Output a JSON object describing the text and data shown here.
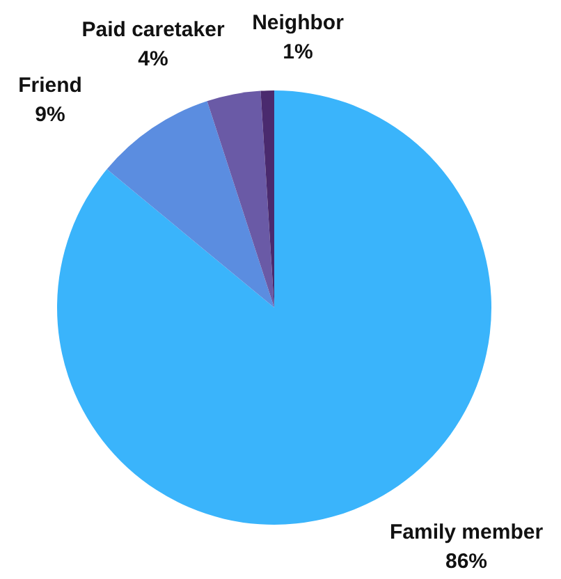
{
  "chart_data": {
    "type": "pie",
    "categories": [
      "Family member",
      "Friend",
      "Paid caretaker",
      "Neighbor"
    ],
    "values": [
      86,
      9,
      4,
      1
    ],
    "colors": [
      "#3ab4fb",
      "#5b8de0",
      "#6a5aa6",
      "#4a2a6e"
    ],
    "value_labels": [
      "86%",
      "9%",
      "4%",
      "1%"
    ],
    "legend": false
  }
}
